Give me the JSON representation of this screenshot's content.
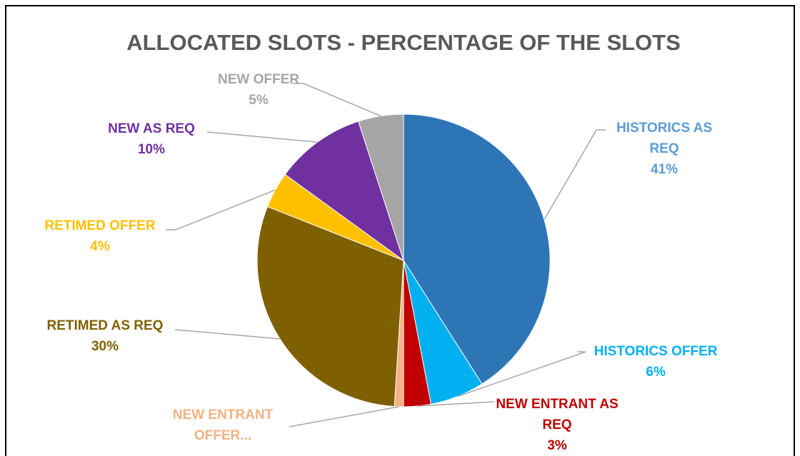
{
  "chart_data": {
    "type": "pie",
    "title": "ALLOCATED SLOTS - PERCENTAGE OF THE SLOTS",
    "categories": [
      "HISTORICS AS REQ",
      "HISTORICS OFFER",
      "NEW ENTRANT AS REQ",
      "NEW ENTRANT OFFER...",
      "RETIMED AS REQ",
      "RETIMED OFFER",
      "NEW AS REQ",
      "NEW OFFER"
    ],
    "values": [
      41,
      6,
      3,
      1,
      30,
      4,
      10,
      5
    ],
    "value_labels": [
      "41%",
      "6%",
      "3%",
      null,
      "30%",
      "4%",
      "10%",
      "5%"
    ],
    "colors": [
      "#2e75b6",
      "#00b0f0",
      "#c00000",
      "#f4b183",
      "#7f6000",
      "#ffc000",
      "#7030a0",
      "#a5a5a5"
    ]
  }
}
